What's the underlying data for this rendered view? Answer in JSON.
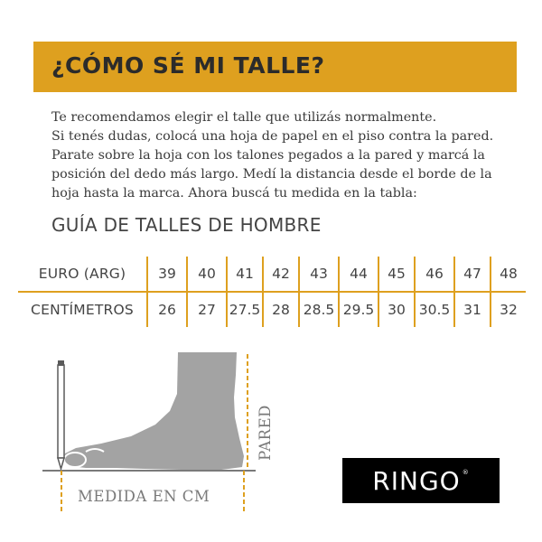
{
  "banner": {
    "title": "¿CÓMO SÉ MI TALLE?"
  },
  "intro": {
    "lines": [
      "Te recomendamos elegir el talle que utilizás normalmente.",
      "Si tenés dudas, colocá una hoja de papel en el piso contra la pared.",
      "Parate sobre la hoja con los talones pegados a la pared y marcá la",
      "posición del dedo más largo. Medí la distancia desde el borde de la",
      "hoja hasta la marca. Ahora buscá tu medida en la tabla:"
    ]
  },
  "guide": {
    "title": "GUÍA DE TALLES DE HOMBRE",
    "rows": [
      {
        "label": "EURO (ARG)",
        "values": [
          "39",
          "40",
          "41",
          "42",
          "43",
          "44",
          "45",
          "46",
          "47",
          "48"
        ]
      },
      {
        "label": "CENTÍMETROS",
        "values": [
          "26",
          "27",
          "27.5",
          "28",
          "28.5",
          "29.5",
          "30",
          "30.5",
          "31",
          "32"
        ]
      }
    ]
  },
  "illustration": {
    "measure_label": "MEDIDA EN CM",
    "wall_label": "PARED"
  },
  "brand": {
    "logo_text": "RINGO",
    "reg_mark": "®"
  },
  "colors": {
    "accent": "#dea01f",
    "foot": "#a3a3a3",
    "text": "#3a3a3a"
  }
}
